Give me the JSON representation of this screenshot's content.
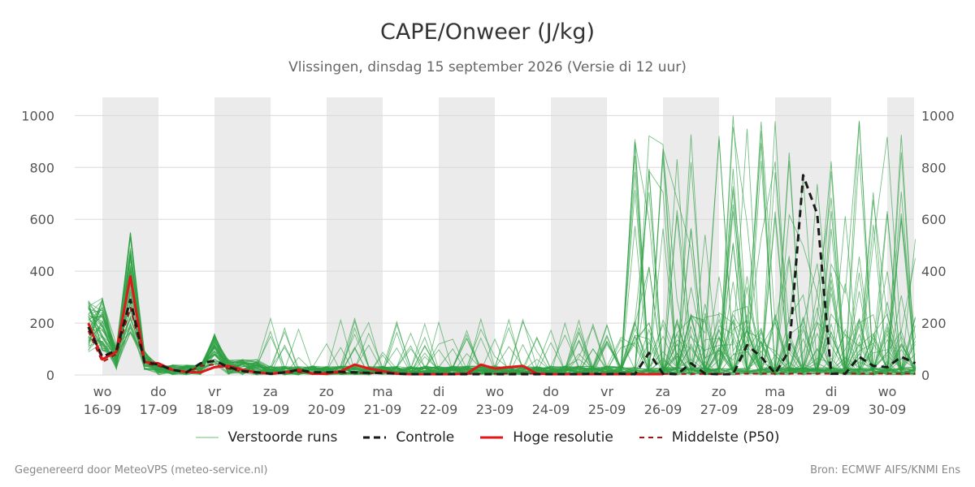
{
  "header": {
    "title": "CAPE/Onweer (J/kg)",
    "subtitle": "Vlissingen, dinsdag 15 september 2026 (Versie di 12 uur)"
  },
  "footer": {
    "left": "Gegenereerd door MeteoVPS (meteo-service.nl)",
    "right": "Bron: ECMWF AIFS/KNMI Ens"
  },
  "legend": [
    {
      "key": "members",
      "label": "Verstoorde runs"
    },
    {
      "key": "control",
      "label": "Controle"
    },
    {
      "key": "hires",
      "label": "Hoge resolutie"
    },
    {
      "key": "median",
      "label": "Middelste (P50)"
    }
  ],
  "colors": {
    "members": "#2ea043",
    "control": "#1a1a1a",
    "hires": "#e3161b",
    "median": "#a31515",
    "night_band": "#ebebeb",
    "grid": "#d9d9d9"
  },
  "chart_data": {
    "type": "line",
    "x_unit": "dagen vanaf wo 16-09 00u",
    "xlim": [
      0,
      14.5
    ],
    "ylim": [
      0,
      1070
    ],
    "yticks": [
      0,
      200,
      400,
      600,
      800,
      1000
    ],
    "grid": true,
    "legend_position": "bottom",
    "day_ticks": [
      {
        "day": "wo",
        "date": "16-09"
      },
      {
        "day": "do",
        "date": "17-09"
      },
      {
        "day": "vr",
        "date": "18-09"
      },
      {
        "day": "za",
        "date": "19-09"
      },
      {
        "day": "zo",
        "date": "20-09"
      },
      {
        "day": "ma",
        "date": "21-09"
      },
      {
        "day": "di",
        "date": "22-09"
      },
      {
        "day": "wo",
        "date": "23-09"
      },
      {
        "day": "do",
        "date": "24-09"
      },
      {
        "day": "vr",
        "date": "25-09"
      },
      {
        "day": "za",
        "date": "26-09"
      },
      {
        "day": "zo",
        "date": "27-09"
      },
      {
        "day": "ma",
        "date": "28-09"
      },
      {
        "day": "di",
        "date": "29-09"
      },
      {
        "day": "wo",
        "date": "30-09"
      }
    ],
    "shaded_days": [
      0,
      2,
      4,
      6,
      8,
      10,
      12,
      14
    ],
    "member_count": 50,
    "series": [
      {
        "name": "Controle",
        "x": [
          -0.25,
          0,
          0.25,
          0.5,
          0.75,
          1,
          1.25,
          1.5,
          1.75,
          2,
          2.25,
          2.5,
          2.75,
          3,
          3.25,
          3.5,
          3.75,
          4,
          4.25,
          4.5,
          4.75,
          5,
          5.25,
          5.5,
          5.75,
          6,
          6.25,
          6.5,
          6.75,
          7,
          7.25,
          7.5,
          7.75,
          8,
          8.25,
          8.5,
          8.75,
          9,
          9.25,
          9.5,
          9.75,
          10,
          10.25,
          10.5,
          10.75,
          11,
          11.25,
          11.5,
          11.75,
          12,
          12.25,
          12.5,
          12.75,
          13,
          13.25,
          13.5,
          13.75,
          14,
          14.25,
          14.5
        ],
        "values": [
          185,
          70,
          95,
          290,
          50,
          40,
          20,
          10,
          45,
          55,
          30,
          15,
          10,
          5,
          10,
          20,
          10,
          10,
          12,
          10,
          8,
          8,
          5,
          3,
          3,
          3,
          3,
          3,
          3,
          3,
          3,
          3,
          3,
          3,
          3,
          3,
          5,
          3,
          5,
          3,
          85,
          5,
          3,
          45,
          5,
          3,
          3,
          115,
          70,
          5,
          95,
          770,
          620,
          5,
          5,
          70,
          35,
          30,
          70,
          45
        ]
      },
      {
        "name": "Hoge resolutie",
        "x": [
          -0.25,
          0,
          0.25,
          0.5,
          0.75,
          1,
          1.25,
          1.5,
          1.75,
          2,
          2.25,
          2.5,
          2.75,
          3,
          3.25,
          3.5,
          3.75,
          4,
          4.25,
          4.5,
          4.75,
          5,
          5.25,
          5.5,
          5.75,
          6,
          6.25,
          6.5,
          6.75,
          7,
          7.25,
          7.5,
          7.75,
          8,
          8.25,
          8.5,
          8.75,
          9,
          9.25,
          9.5,
          9.75,
          10
        ],
        "values": [
          200,
          60,
          90,
          380,
          50,
          45,
          20,
          12,
          10,
          30,
          35,
          20,
          10,
          5,
          10,
          20,
          5,
          5,
          15,
          40,
          25,
          15,
          5,
          3,
          3,
          3,
          3,
          5,
          40,
          25,
          30,
          35,
          5,
          3,
          3,
          3,
          3,
          3,
          3,
          3,
          3,
          3
        ]
      },
      {
        "name": "Middelste (P50)",
        "x": [
          -0.25,
          0,
          0.25,
          0.5,
          0.75,
          1,
          1.25,
          1.5,
          1.75,
          2,
          2.25,
          2.5,
          2.75,
          3,
          3.25,
          3.5,
          3.75,
          4,
          4.5,
          5,
          5.5,
          6,
          6.5,
          7,
          7.5,
          8,
          8.5,
          9,
          9.5,
          10,
          10.5,
          11,
          11.5,
          12,
          12.5,
          13,
          13.5,
          14,
          14.5
        ],
        "values": [
          170,
          50,
          80,
          260,
          45,
          35,
          18,
          10,
          35,
          40,
          25,
          12,
          8,
          5,
          8,
          12,
          8,
          8,
          8,
          6,
          5,
          4,
          4,
          5,
          6,
          4,
          4,
          4,
          4,
          4,
          4,
          4,
          5,
          5,
          5,
          5,
          5,
          5,
          5
        ]
      }
    ]
  }
}
